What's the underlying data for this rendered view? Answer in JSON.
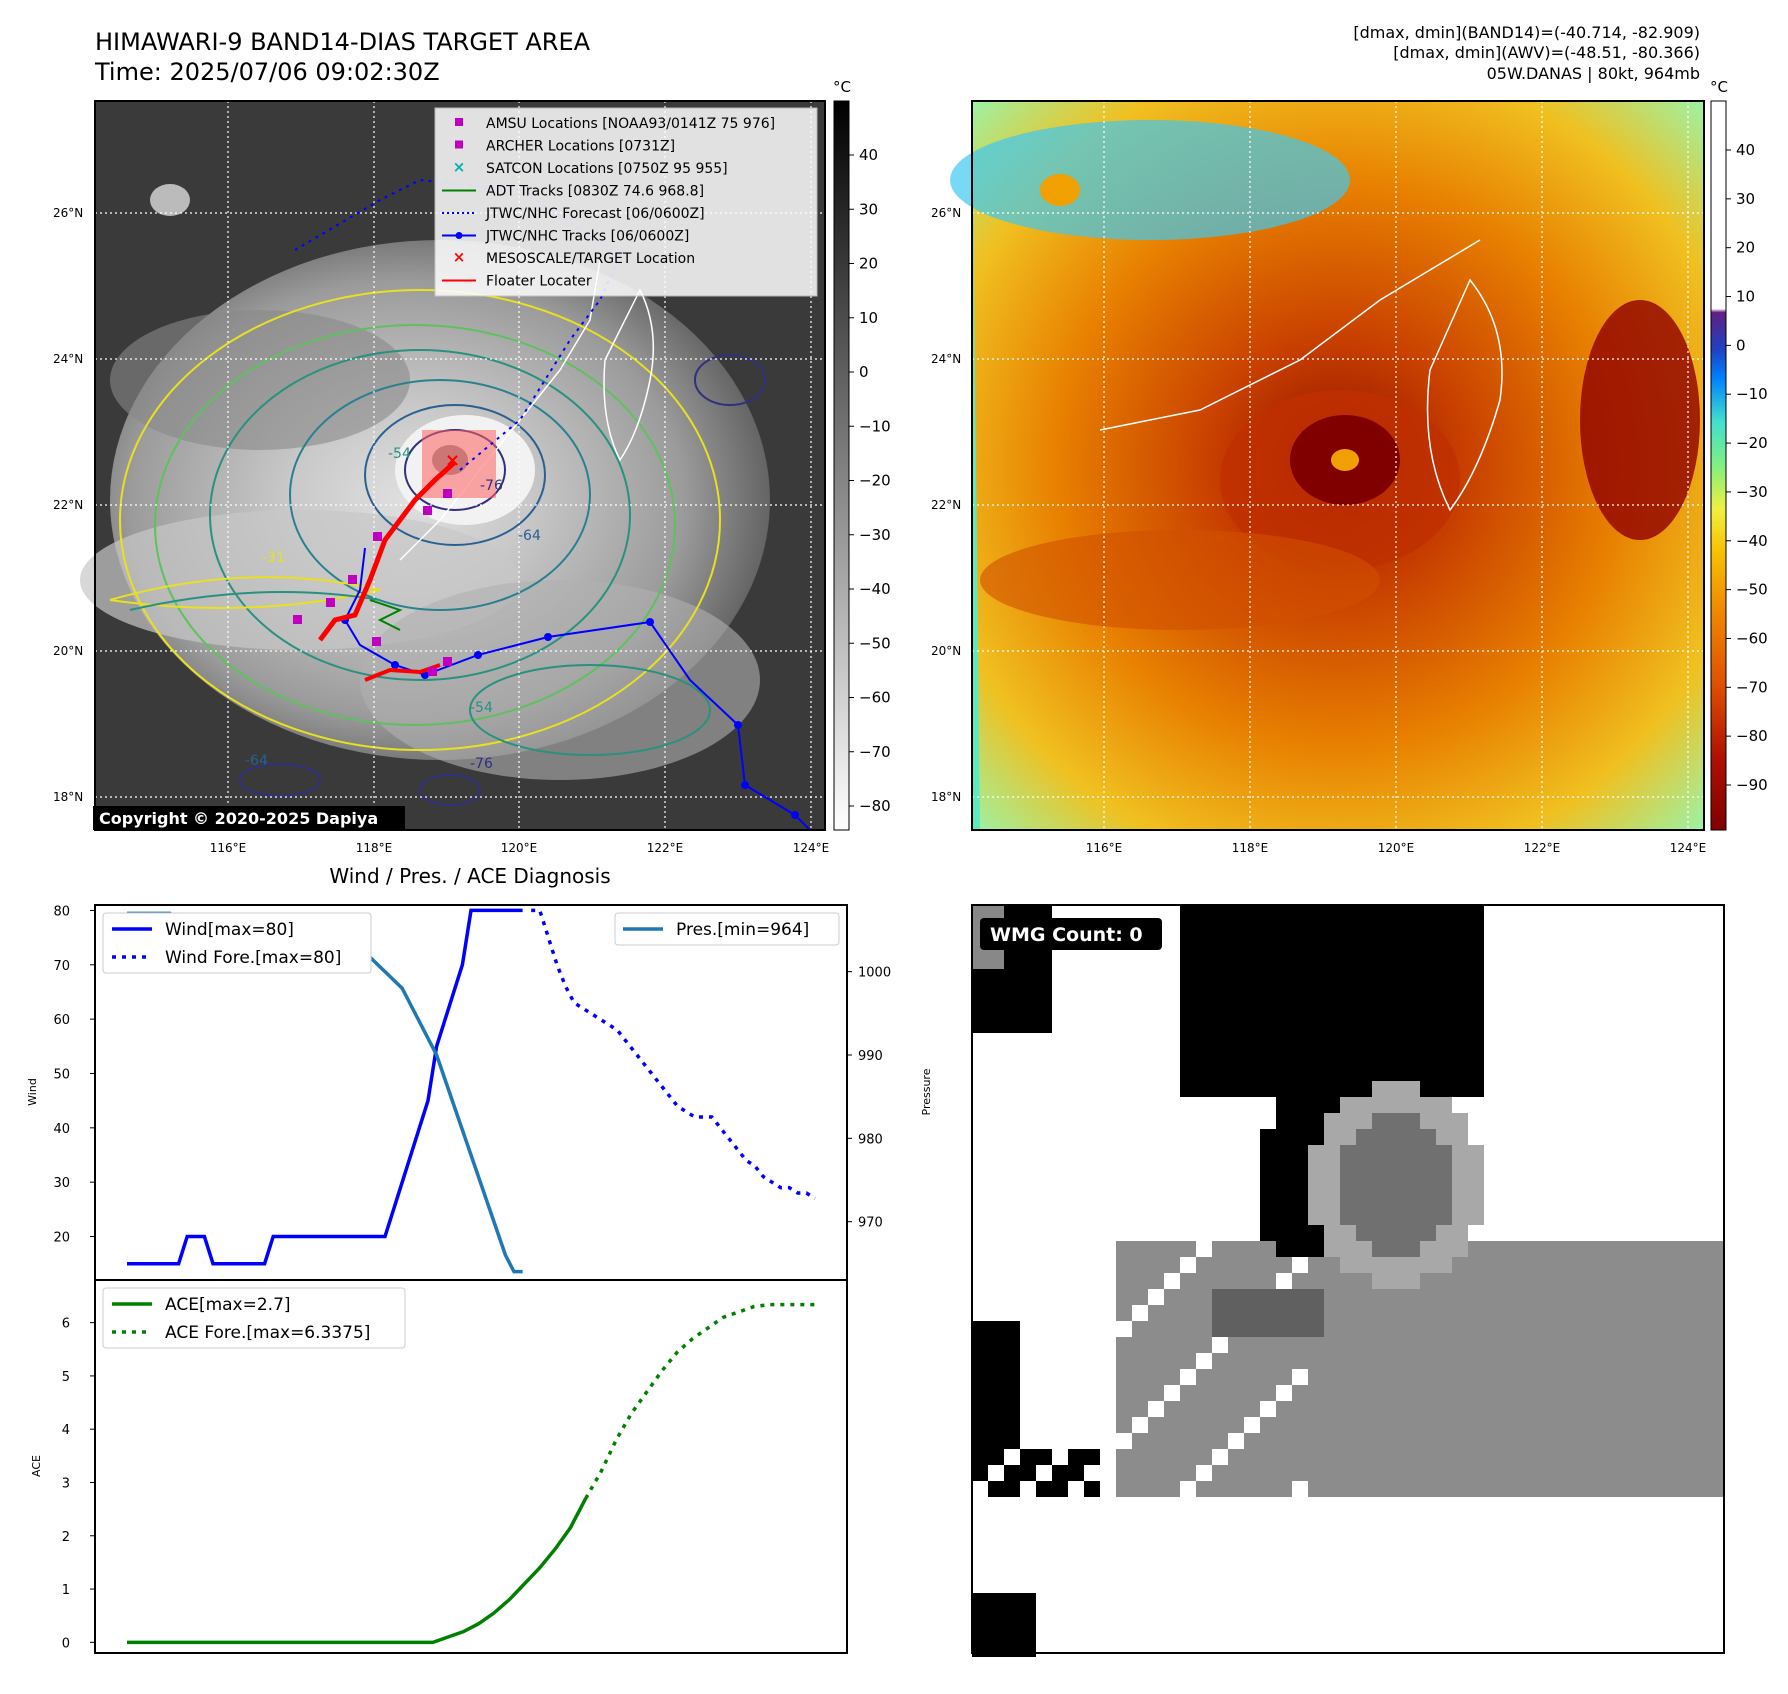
{
  "header": {
    "title_line1": "HIMAWARI-9 BAND14-DIAS TARGET AREA",
    "title_line2": "Time: 2025/07/06 09:02:30Z",
    "info_line1": "[dmax, dmin](BAND14)=(-40.714, -82.909)",
    "info_line2": "[dmax, dmin](AWV)=(-48.51, -80.366)",
    "info_line3": "05W.DANAS | 80kt, 964mb"
  },
  "map": {
    "lat_labels": [
      "26°N",
      "24°N",
      "22°N",
      "20°N",
      "18°N"
    ],
    "lon_labels": [
      "116°E",
      "118°E",
      "120°E",
      "122°E",
      "124°E"
    ],
    "copyright": "Copyright © 2020-2025 Dapiya",
    "contour_labels": [
      "-54",
      "-64",
      "-76",
      "-31",
      "-54",
      "-64",
      "-76"
    ]
  },
  "legend_map": {
    "items": [
      {
        "label": "AMSU Locations [NOAA93/0141Z 75 976]",
        "color": "#c000c0",
        "marker": "square"
      },
      {
        "label": "ARCHER Locations [0731Z]",
        "color": "#c000c0",
        "marker": "square"
      },
      {
        "label": "SATCON Locations [0750Z 95 955]",
        "color": "#00b0b0",
        "marker": "x"
      },
      {
        "label": "ADT Tracks [0830Z 74.6 968.8]",
        "color": "#008000",
        "marker": "line"
      },
      {
        "label": "JTWC/NHC Forecast [06/0600Z]",
        "color": "#0000ff",
        "marker": "dotted"
      },
      {
        "label": "JTWC/NHC Tracks [06/0600Z]",
        "color": "#0000ff",
        "marker": "line-dot"
      },
      {
        "label": "MESOSCALE/TARGET Location",
        "color": "#ff0000",
        "marker": "x"
      },
      {
        "label": "Floater Locater",
        "color": "#ff0000",
        "marker": "line"
      }
    ]
  },
  "colorbar_left": {
    "unit": "°C",
    "ticks": [
      "40",
      "30",
      "20",
      "10",
      "0",
      "−10",
      "−20",
      "−30",
      "−40",
      "−50",
      "−60",
      "−70",
      "−80"
    ]
  },
  "colorbar_right": {
    "unit": "°C",
    "ticks": [
      "40",
      "30",
      "20",
      "10",
      "0",
      "−10",
      "−20",
      "−30",
      "−40",
      "−50",
      "−60",
      "−70",
      "−80",
      "−90"
    ]
  },
  "diag": {
    "title": "Wind / Pres. / ACE Diagnosis",
    "wind_ylabel": "Wind",
    "pres_ylabel": "Pressure",
    "ace_ylabel": "ACE",
    "wind_ticks": [
      "80",
      "70",
      "60",
      "50",
      "40",
      "30",
      "20"
    ],
    "pres_ticks": [
      "1000",
      "990",
      "980",
      "970"
    ],
    "ace_ticks": [
      "6",
      "5",
      "4",
      "3",
      "2",
      "1",
      "0"
    ]
  },
  "wmg": {
    "label": "WMG Count: 0"
  },
  "chart_data": [
    {
      "type": "line",
      "title": "Wind / Pres. / ACE Diagnosis",
      "ylabel": "Wind",
      "ylim": [
        12,
        81
      ],
      "series": [
        {
          "name": "Wind[max=80]",
          "color": "#0000ff",
          "style": "solid",
          "x": [
            0,
            1,
            2,
            3,
            4,
            5,
            6,
            7,
            8,
            9,
            10,
            11,
            12,
            13,
            14,
            15,
            16,
            17,
            18,
            19,
            20,
            21,
            22,
            23,
            24,
            25,
            26,
            27,
            28,
            29,
            30,
            31,
            32,
            33,
            34,
            35,
            36,
            37,
            38,
            39,
            40,
            41,
            42,
            43,
            44,
            45,
            46
          ],
          "values": [
            15,
            15,
            15,
            15,
            15,
            15,
            15,
            20,
            20,
            20,
            15,
            15,
            15,
            15,
            15,
            15,
            15,
            20,
            20,
            20,
            20,
            20,
            20,
            20,
            20,
            20,
            20,
            20,
            20,
            20,
            20,
            25,
            30,
            35,
            40,
            45,
            55,
            60,
            65,
            70,
            80,
            80,
            80,
            80,
            80,
            80,
            80
          ]
        },
        {
          "name": "Wind Fore.[max=80]",
          "color": "#0000ff",
          "style": "dotted",
          "x": [
            47,
            48,
            49,
            50,
            51,
            52,
            53,
            54,
            55,
            56,
            57,
            58,
            59,
            60,
            61,
            62,
            63,
            64,
            65,
            66,
            67,
            68,
            69,
            70,
            71,
            72,
            73,
            74,
            75,
            76,
            77,
            78,
            79,
            80
          ],
          "values": [
            80,
            80,
            75,
            70,
            66,
            63,
            62,
            61,
            60,
            59,
            58,
            56,
            54,
            52,
            50,
            48,
            46,
            44,
            43,
            42,
            42,
            42,
            40,
            38,
            36,
            34,
            33,
            31,
            30,
            29,
            29,
            28,
            28,
            27
          ]
        }
      ],
      "x_visible_segments": "pressure twin axis on right"
    },
    {
      "type": "line",
      "ylabel": "Pressure",
      "ylim": [
        963,
        1008
      ],
      "series": [
        {
          "name": "Pres.[min=964]",
          "color": "#1f77b4",
          "x": [
            0,
            1,
            2,
            3,
            4,
            5,
            6,
            7,
            8,
            9,
            10,
            11,
            12,
            13,
            14,
            15,
            16,
            17,
            18,
            19,
            20,
            21,
            22,
            23,
            24,
            25,
            26,
            27,
            28,
            29,
            30,
            31,
            32,
            33,
            34,
            35,
            36,
            37,
            38,
            39,
            40,
            41,
            42,
            43,
            44,
            45,
            46
          ],
          "values": [
            1007,
            1007,
            1007,
            1007,
            1007,
            1007,
            1006,
            1006,
            1006,
            1006,
            1006,
            1006,
            1005,
            1005,
            1005,
            1005,
            1005,
            1004,
            1004,
            1004,
            1004,
            1003,
            1003,
            1004,
            1003,
            1003,
            1003,
            1002,
            1002,
            1001,
            1000,
            999,
            998,
            996,
            994,
            992,
            990,
            987,
            984,
            981,
            978,
            975,
            972,
            969,
            966,
            964,
            964
          ]
        }
      ]
    },
    {
      "type": "line",
      "ylabel": "ACE",
      "ylim": [
        -0.2,
        6.8
      ],
      "series": [
        {
          "name": "ACE[max=2.7]",
          "color": "#008000",
          "style": "solid",
          "x": [
            0,
            5,
            10,
            15,
            20,
            25,
            30,
            35,
            38,
            40,
            42,
            44,
            46,
            48,
            50,
            52,
            54,
            56,
            58,
            60
          ],
          "values": [
            0,
            0,
            0,
            0,
            0,
            0,
            0,
            0,
            0,
            0,
            0.1,
            0.2,
            0.35,
            0.55,
            0.8,
            1.1,
            1.4,
            1.75,
            2.15,
            2.7
          ]
        },
        {
          "name": "ACE Fore.[max=6.3375]",
          "color": "#008000",
          "style": "dotted",
          "x": [
            60,
            62,
            64,
            66,
            68,
            70,
            72,
            74,
            76,
            78,
            80,
            82,
            84,
            86,
            88,
            90
          ],
          "values": [
            2.7,
            3.2,
            3.8,
            4.3,
            4.7,
            5.1,
            5.45,
            5.7,
            5.9,
            6.1,
            6.2,
            6.3,
            6.3375,
            6.3375,
            6.3375,
            6.3375
          ]
        }
      ]
    }
  ]
}
